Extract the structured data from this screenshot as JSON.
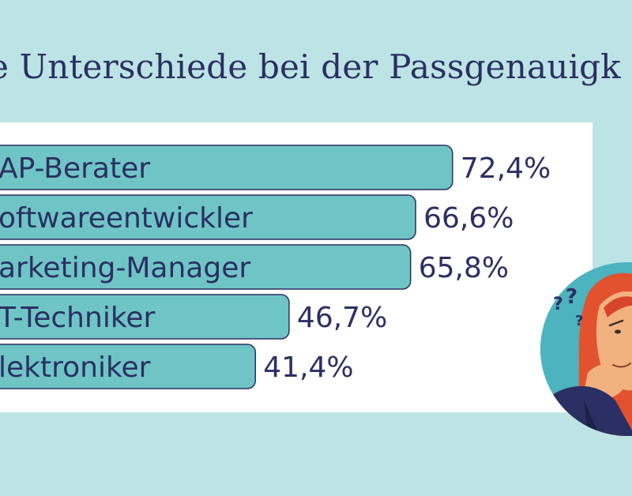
{
  "title": "e Unterschiede bei der Passgenauigk",
  "colors": {
    "background": "#bde4e4",
    "bar_fill": "#6fc5c5",
    "bar_stroke": "#2b2f63",
    "text": "#2b2f63"
  },
  "chart_data": {
    "type": "bar",
    "orientation": "horizontal",
    "title": "e Unterschiede bei der Passgenauigk",
    "categories": [
      "AP-Berater",
      "oftwareentwickler",
      "arketing-Manager",
      "T-Techniker",
      "lektroniker"
    ],
    "values": [
      72.4,
      66.6,
      65.8,
      46.7,
      41.4
    ],
    "value_labels": [
      "72,4%",
      "66,6%",
      "65,8%",
      "46,7%",
      "41,4%"
    ],
    "unit": "%",
    "grid": false,
    "legend": "none"
  }
}
